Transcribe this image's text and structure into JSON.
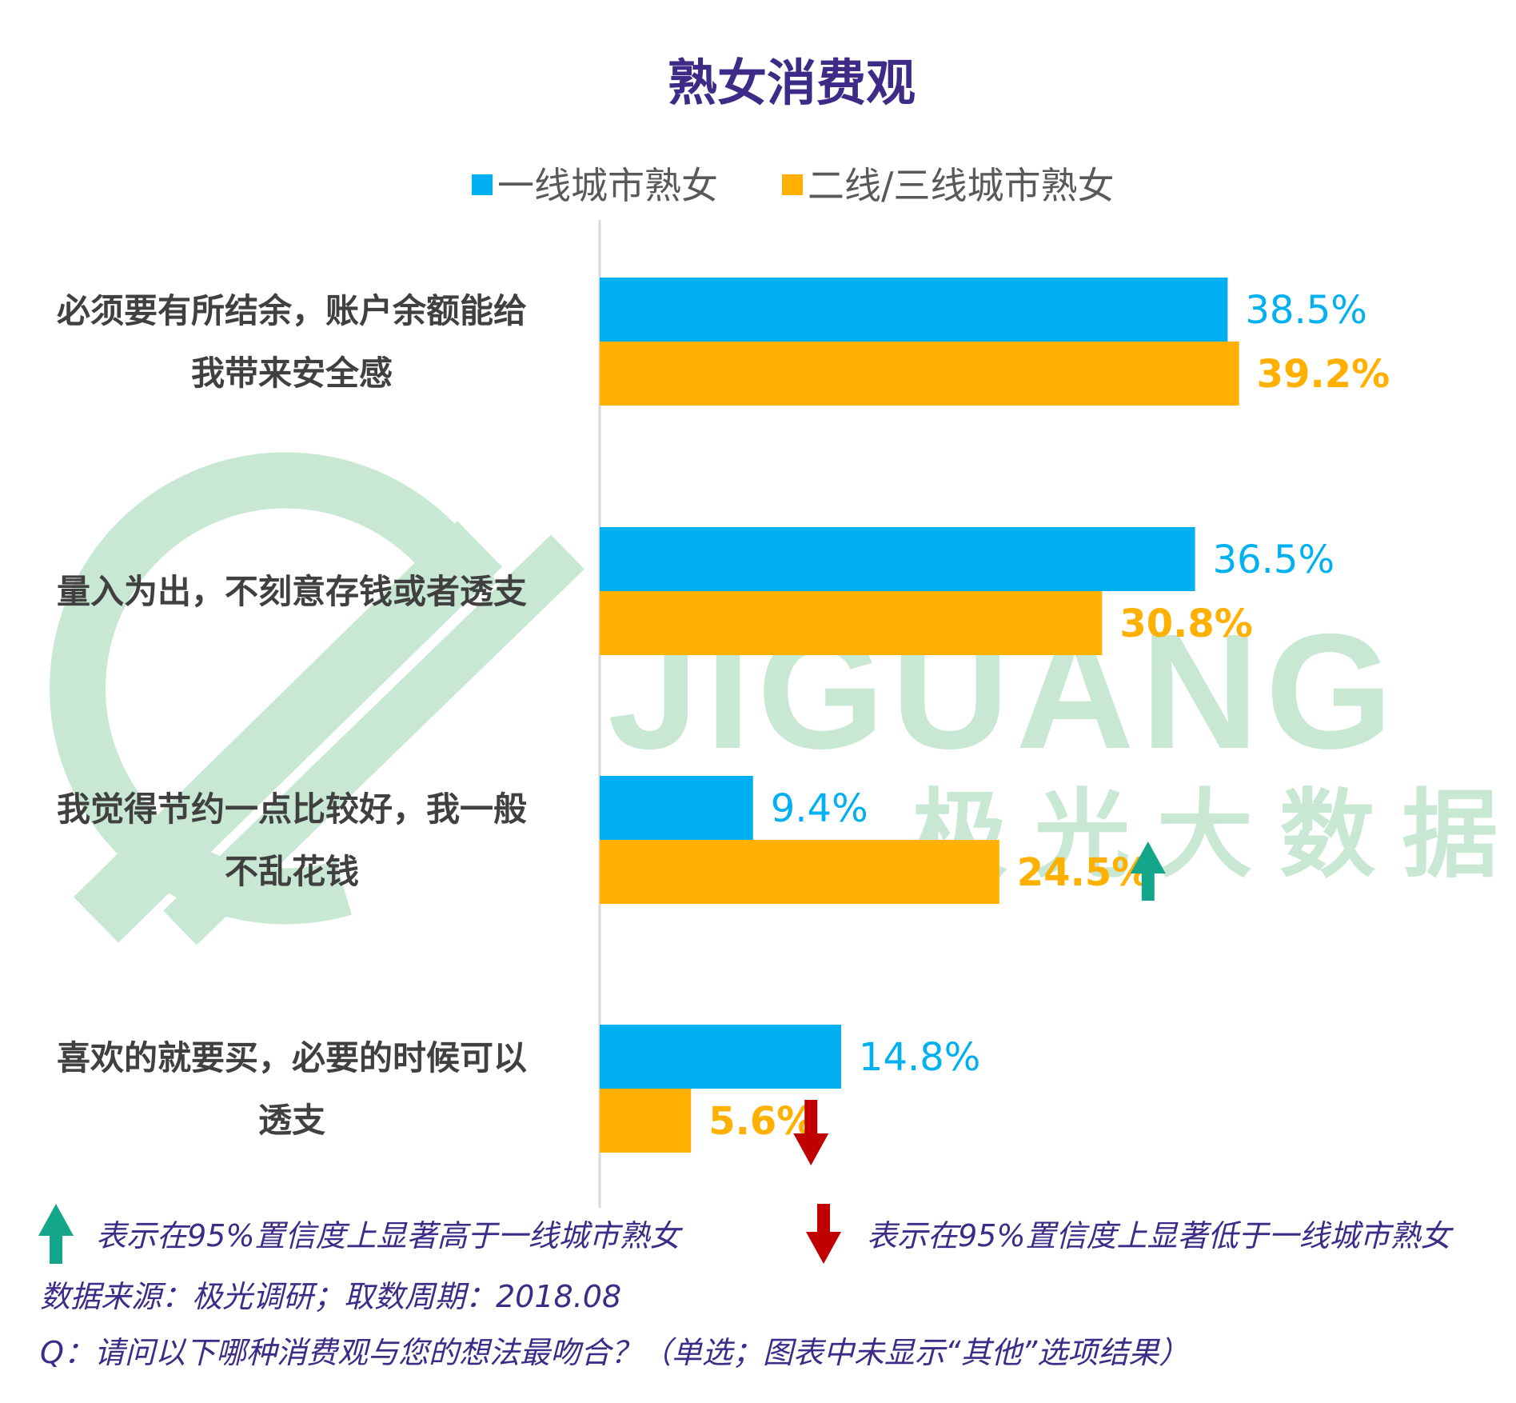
{
  "chart_data": {
    "type": "bar",
    "orientation": "horizontal",
    "title": "熟女消费观",
    "categories": [
      [
        "必须要有所结余，账户余额能给",
        "我带来安全感"
      ],
      [
        "量入为出，不刻意存钱或者透支"
      ],
      [
        "我觉得节约一点比较好，我一般",
        "不乱花钱"
      ],
      [
        "喜欢的就要买，必要的时候可以",
        "透支"
      ]
    ],
    "series": [
      {
        "name": "一线城市熟女",
        "color": "#00B0F0",
        "values": [
          38.5,
          36.5,
          9.4,
          14.8
        ],
        "labels": [
          "38.5%",
          "36.5%",
          "9.4%",
          "14.8%"
        ]
      },
      {
        "name": "二线/三线城市熟女",
        "color": "#FFB000",
        "values": [
          39.2,
          30.8,
          24.5,
          5.6
        ],
        "labels": [
          "39.2%",
          "30.8%",
          "24.5%",
          "5.6%"
        ],
        "significance": [
          null,
          null,
          "up",
          "down"
        ]
      }
    ],
    "xlim": [
      0,
      40
    ],
    "legend_position": "top",
    "grid": false
  },
  "colors": {
    "title": "#3D2B87",
    "series1": "#00B0F0",
    "series2": "#FFB000",
    "up_arrow": "#13A68A",
    "down_arrow": "#C00000",
    "footer": "#3D2B87",
    "watermark": "#C8E8D4"
  },
  "watermark": {
    "brand": "JIGUANG",
    "chinese": "极 光 大 数 据"
  },
  "footer": {
    "up_note": "表示在95%置信度上显著高于一线城市熟女",
    "down_note": "表示在95%置信度上显著低于一线城市熟女",
    "source": "数据来源：极光调研；取数周期：2018.08",
    "question": "Q：请问以下哪种消费观与您的想法最吻合？（单选；图表中未显示“其他”选项结果）"
  }
}
